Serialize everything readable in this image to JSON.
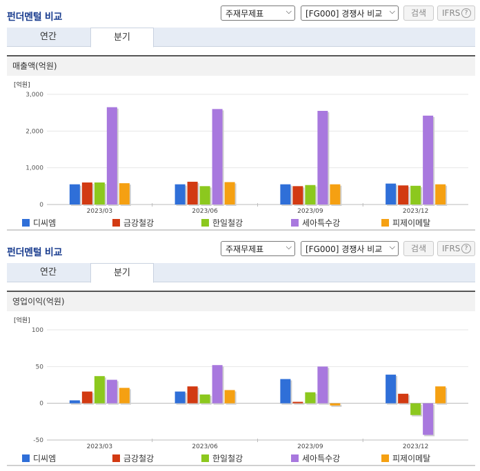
{
  "panels": [
    {
      "title": "펀더멘털 비교",
      "select1": "주재무제표",
      "select2": "[FG000] 경쟁사 비교",
      "search_label": "검색",
      "ifrs_label": "IFRS",
      "help_glyph": "?",
      "tabs": [
        "연간",
        "분기"
      ],
      "active_tab": "분기",
      "subtitle": "매출액(억원)"
    },
    {
      "title": "펀더멘털 비교",
      "select1": "주재무제표",
      "select2": "[FG000] 경쟁사 비교",
      "search_label": "검색",
      "ifrs_label": "IFRS",
      "help_glyph": "?",
      "tabs": [
        "연간",
        "분기"
      ],
      "active_tab": "분기",
      "subtitle": "영업이익(억원)"
    }
  ],
  "icons": {
    "dropdown": "chevron-down-icon",
    "help": "question-circle-icon"
  },
  "chart_data": [
    {
      "type": "bar",
      "unit_label": "[억원]",
      "categories": [
        "2023/03",
        "2023/06",
        "2023/09",
        "2023/12"
      ],
      "ylim": [
        0,
        3000
      ],
      "yticks": [
        0,
        1000,
        2000,
        3000
      ],
      "ytick_labels": [
        "0",
        "1,000",
        "2,000",
        "3,000"
      ],
      "grid": true,
      "legend_position": "bottom",
      "series": [
        {
          "name": "디씨엠",
          "color": "#2f6fd8",
          "values": [
            550,
            550,
            550,
            570
          ]
        },
        {
          "name": "금강철강",
          "color": "#d23a12",
          "values": [
            600,
            620,
            500,
            520
          ]
        },
        {
          "name": "한일철강",
          "color": "#8cc81e",
          "values": [
            600,
            500,
            530,
            510
          ]
        },
        {
          "name": "세아특수강",
          "color": "#a878de",
          "values": [
            2650,
            2600,
            2550,
            2420
          ]
        },
        {
          "name": "피제이메탈",
          "color": "#f5a012",
          "values": [
            580,
            610,
            550,
            550
          ]
        }
      ]
    },
    {
      "type": "bar",
      "unit_label": "[억원]",
      "categories": [
        "2023/03",
        "2023/06",
        "2023/09",
        "2023/12"
      ],
      "ylim": [
        -50,
        100
      ],
      "yticks": [
        -50,
        0,
        50,
        100
      ],
      "ytick_labels": [
        "-50",
        "0",
        "50",
        "100"
      ],
      "grid": true,
      "legend_position": "bottom",
      "series": [
        {
          "name": "디씨엠",
          "color": "#2f6fd8",
          "values": [
            4,
            16,
            33,
            39
          ]
        },
        {
          "name": "금강철강",
          "color": "#d23a12",
          "values": [
            16,
            23,
            2,
            13
          ]
        },
        {
          "name": "한일철강",
          "color": "#8cc81e",
          "values": [
            37,
            12,
            15,
            -16
          ]
        },
        {
          "name": "세아특수강",
          "color": "#a878de",
          "values": [
            32,
            52,
            50,
            -43
          ]
        },
        {
          "name": "피제이메탈",
          "color": "#f5a012",
          "values": [
            21,
            18,
            -3,
            23
          ]
        }
      ]
    }
  ]
}
